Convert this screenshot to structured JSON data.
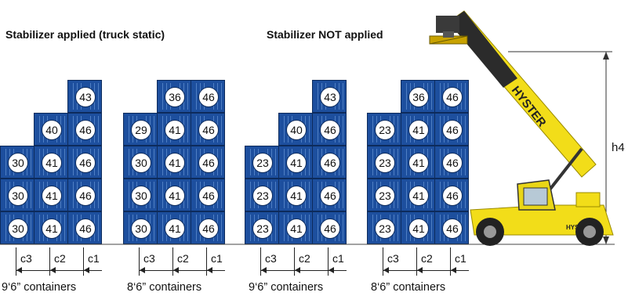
{
  "titles": {
    "stabilizer_applied": "Stabilizer applied (truck static)",
    "stabilizer_not_applied": "Stabilizer NOT applied"
  },
  "colors": {
    "container_fill": "#1d4f9e",
    "container_edge": "#0d2b5c",
    "machine_yellow": "#f2dd19",
    "boom_dark": "#2b2b2b"
  },
  "groups": [
    {
      "caption": "9‘6” containers",
      "columns": [
        {
          "label": "c3",
          "values": [
            "30",
            "30",
            "30"
          ]
        },
        {
          "label": "c2",
          "values": [
            "41",
            "41",
            "41",
            "40"
          ]
        },
        {
          "label": "c1",
          "values": [
            "46",
            "46",
            "46",
            "46",
            "43"
          ]
        }
      ]
    },
    {
      "caption": "8‘6” containers",
      "columns": [
        {
          "label": "c3",
          "values": [
            "30",
            "30",
            "30",
            "29"
          ]
        },
        {
          "label": "c2",
          "values": [
            "41",
            "41",
            "41",
            "41",
            "36"
          ]
        },
        {
          "label": "c1",
          "values": [
            "46",
            "46",
            "46",
            "46",
            "46"
          ]
        }
      ]
    },
    {
      "caption": "9‘6” containers",
      "columns": [
        {
          "label": "c3",
          "values": [
            "23",
            "23",
            "23"
          ]
        },
        {
          "label": "c2",
          "values": [
            "41",
            "41",
            "41",
            "40"
          ]
        },
        {
          "label": "c1",
          "values": [
            "46",
            "46",
            "46",
            "46",
            "43"
          ]
        }
      ]
    },
    {
      "caption": "8‘6” containers",
      "columns": [
        {
          "label": "c3",
          "values": [
            "23",
            "23",
            "23",
            "23"
          ]
        },
        {
          "label": "c2",
          "values": [
            "41",
            "41",
            "41",
            "41",
            "36"
          ]
        },
        {
          "label": "c1",
          "values": [
            "46",
            "46",
            "46",
            "46",
            "46"
          ]
        }
      ]
    }
  ],
  "height_label": "h4",
  "machine": {
    "brand_boom": "HYSTER",
    "brand_body": "HYSTER"
  }
}
